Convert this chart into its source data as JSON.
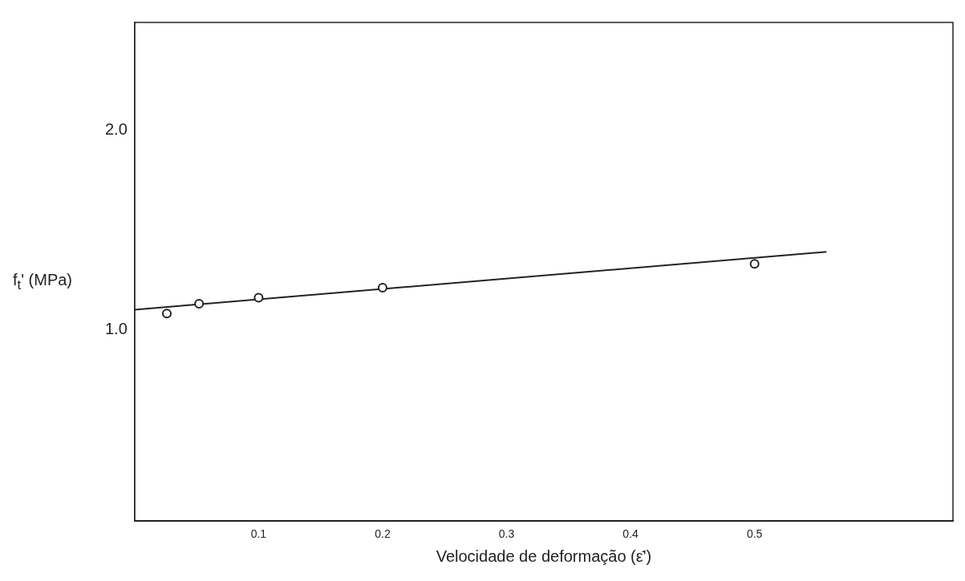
{
  "chart_data": {
    "type": "scatter",
    "xlabel": "Velocidade de deformação (ε̇')",
    "ylabel": "f$_{t}$' (MPa)",
    "xlim": [
      0,
      0.66
    ],
    "ylim": [
      0.04,
      2.54
    ],
    "xticks": [
      0.1,
      0.2,
      0.3,
      0.4,
      0.5
    ],
    "yticks": [
      {
        "value": 1,
        "label": "1.0"
      },
      {
        "value": 2,
        "label": "2.0"
      }
    ],
    "grid": false,
    "legend": false,
    "series": [
      {
        "type": "scatter",
        "marker": "circle",
        "color": "#222222",
        "x": [
          0.026,
          0.052,
          0.1,
          0.2,
          0.5
        ],
        "values": [
          1.08,
          1.13,
          1.16,
          1.21,
          1.33
        ]
      },
      {
        "type": "line",
        "marker": "none",
        "color": "#222222",
        "line_style": "solid",
        "x": [
          0,
          0.558
        ],
        "values": [
          1.1,
          1.39
        ]
      }
    ]
  }
}
